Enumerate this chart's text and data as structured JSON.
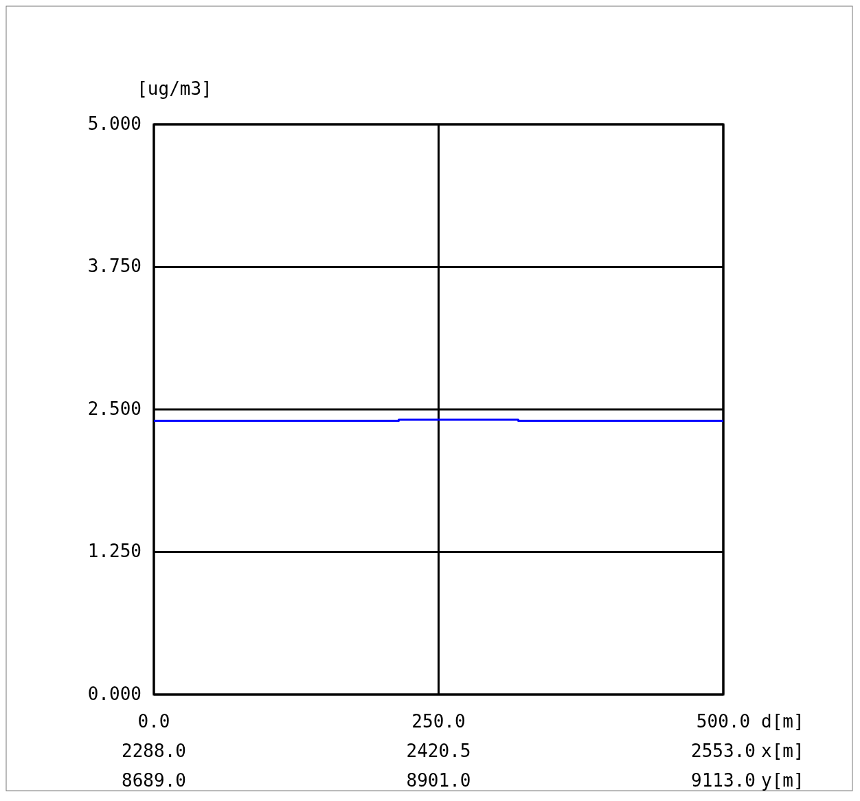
{
  "chart_data": {
    "type": "line",
    "ylabel": "[ug/m3]",
    "xlabel": "d[m]",
    "x2label": "x[m]",
    "x": [
      0,
      215,
      215,
      320,
      320,
      500
    ],
    "series": [
      {
        "color": "#0000ff",
        "values": [
          2.4,
          2.4,
          2.41,
          2.41,
          2.4,
          2.4
        ]
      }
    ],
    "xlim": [
      0,
      500
    ],
    "xticks": [
      {
        "value": 0,
        "label": "0.0"
      },
      {
        "value": 250,
        "label": "250.0"
      },
      {
        "value": 500,
        "label": "500.0"
      }
    ],
    "x2lim": [
      2288,
      2553
    ],
    "x2ticks": [
      {
        "value": 2288,
        "label": "2288.0"
      },
      {
        "value": 2420.5,
        "label": "2420.5"
      },
      {
        "value": 2553,
        "label": "2553.0"
      }
    ],
    "annotations": [
      "8689.0",
      "8901.0",
      "9113.0",
      "y[m]"
    ],
    "ylim": [
      0,
      5
    ],
    "yticks": [
      {
        "value": 0,
        "label": "0.000"
      },
      {
        "value": 1.25,
        "label": "1.250"
      },
      {
        "value": 2.5,
        "label": "2.500"
      },
      {
        "value": 3.75,
        "label": "3.750"
      },
      {
        "value": 5,
        "label": "5.000"
      }
    ],
    "grid": true,
    "marker": "none",
    "line_style": "solid"
  }
}
